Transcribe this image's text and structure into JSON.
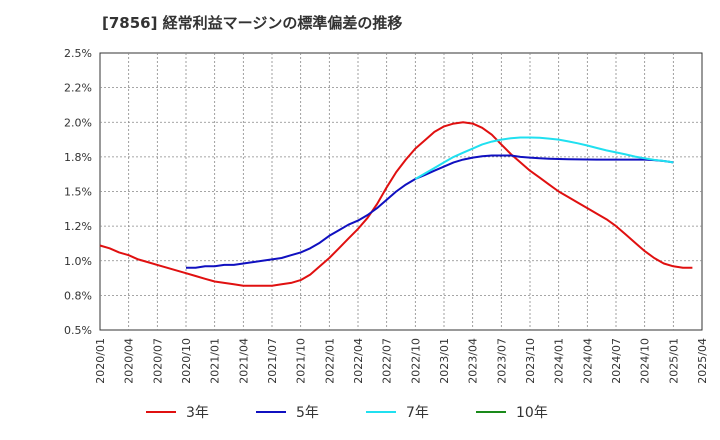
{
  "chart_data": {
    "type": "line",
    "title": "[7856]  経常利益マージンの標準偏差の推移",
    "x": [
      "2020/01",
      "2020/04",
      "2020/07",
      "2020/10",
      "2021/01",
      "2021/04",
      "2021/07",
      "2021/10",
      "2022/01",
      "2022/04",
      "2022/07",
      "2022/10",
      "2023/01",
      "2023/04",
      "2023/07",
      "2023/10",
      "2024/01",
      "2024/04",
      "2024/07",
      "2024/10",
      "2025/01",
      "2025/04"
    ],
    "y_ticks": [
      "0.5%",
      "0.8%",
      "1.0%",
      "1.2%",
      "1.5%",
      "1.8%",
      "2.0%",
      "2.2%",
      "2.5%"
    ],
    "ylim": [
      0.5,
      2.5
    ],
    "grid": true,
    "legend_position": "bottom",
    "series": [
      {
        "name": "3年",
        "color": "#e01010",
        "points": [
          [
            "2020/01",
            1.11
          ],
          [
            "2020/02",
            1.09
          ],
          [
            "2020/03",
            1.06
          ],
          [
            "2020/04",
            1.04
          ],
          [
            "2020/05",
            1.01
          ],
          [
            "2020/06",
            0.99
          ],
          [
            "2020/07",
            0.97
          ],
          [
            "2020/08",
            0.95
          ],
          [
            "2020/09",
            0.93
          ],
          [
            "2020/10",
            0.91
          ],
          [
            "2020/11",
            0.89
          ],
          [
            "2020/12",
            0.87
          ],
          [
            "2021/01",
            0.85
          ],
          [
            "2021/02",
            0.84
          ],
          [
            "2021/03",
            0.83
          ],
          [
            "2021/04",
            0.82
          ],
          [
            "2021/05",
            0.82
          ],
          [
            "2021/06",
            0.82
          ],
          [
            "2021/07",
            0.82
          ],
          [
            "2021/08",
            0.83
          ],
          [
            "2021/09",
            0.84
          ],
          [
            "2021/10",
            0.86
          ],
          [
            "2021/11",
            0.9
          ],
          [
            "2021/12",
            0.96
          ],
          [
            "2022/01",
            1.02
          ],
          [
            "2022/02",
            1.09
          ],
          [
            "2022/03",
            1.16
          ],
          [
            "2022/04",
            1.23
          ],
          [
            "2022/05",
            1.31
          ],
          [
            "2022/06",
            1.41
          ],
          [
            "2022/07",
            1.53
          ],
          [
            "2022/08",
            1.64
          ],
          [
            "2022/09",
            1.73
          ],
          [
            "2022/10",
            1.81
          ],
          [
            "2022/11",
            1.87
          ],
          [
            "2022/12",
            1.93
          ],
          [
            "2023/01",
            1.97
          ],
          [
            "2023/02",
            1.99
          ],
          [
            "2023/03",
            2.0
          ],
          [
            "2023/04",
            1.99
          ],
          [
            "2023/05",
            1.96
          ],
          [
            "2023/06",
            1.91
          ],
          [
            "2023/07",
            1.84
          ],
          [
            "2023/08",
            1.77
          ],
          [
            "2023/09",
            1.71
          ],
          [
            "2023/10",
            1.65
          ],
          [
            "2023/11",
            1.6
          ],
          [
            "2023/12",
            1.55
          ],
          [
            "2024/01",
            1.5
          ],
          [
            "2024/02",
            1.46
          ],
          [
            "2024/03",
            1.42
          ],
          [
            "2024/04",
            1.38
          ],
          [
            "2024/05",
            1.34
          ],
          [
            "2024/06",
            1.3
          ],
          [
            "2024/07",
            1.25
          ],
          [
            "2024/08",
            1.19
          ],
          [
            "2024/09",
            1.13
          ],
          [
            "2024/10",
            1.07
          ],
          [
            "2024/11",
            1.02
          ],
          [
            "2024/12",
            0.98
          ],
          [
            "2025/01",
            0.96
          ],
          [
            "2025/02",
            0.95
          ],
          [
            "2025/03",
            0.95
          ]
        ]
      },
      {
        "name": "5年",
        "color": "#1010c0",
        "points": [
          [
            "2020/10",
            0.95
          ],
          [
            "2020/11",
            0.95
          ],
          [
            "2020/12",
            0.96
          ],
          [
            "2021/01",
            0.96
          ],
          [
            "2021/02",
            0.97
          ],
          [
            "2021/03",
            0.97
          ],
          [
            "2021/04",
            0.98
          ],
          [
            "2021/05",
            0.99
          ],
          [
            "2021/06",
            1.0
          ],
          [
            "2021/07",
            1.01
          ],
          [
            "2021/08",
            1.02
          ],
          [
            "2021/09",
            1.04
          ],
          [
            "2021/10",
            1.06
          ],
          [
            "2021/11",
            1.09
          ],
          [
            "2021/12",
            1.13
          ],
          [
            "2022/01",
            1.18
          ],
          [
            "2022/02",
            1.22
          ],
          [
            "2022/03",
            1.26
          ],
          [
            "2022/04",
            1.29
          ],
          [
            "2022/05",
            1.33
          ],
          [
            "2022/06",
            1.38
          ],
          [
            "2022/07",
            1.44
          ],
          [
            "2022/08",
            1.5
          ],
          [
            "2022/09",
            1.55
          ],
          [
            "2022/10",
            1.59
          ],
          [
            "2022/11",
            1.62
          ],
          [
            "2022/12",
            1.65
          ],
          [
            "2023/01",
            1.68
          ],
          [
            "2023/02",
            1.71
          ],
          [
            "2023/03",
            1.73
          ],
          [
            "2023/04",
            1.745
          ],
          [
            "2023/05",
            1.755
          ],
          [
            "2023/06",
            1.76
          ],
          [
            "2023/07",
            1.76
          ],
          [
            "2023/08",
            1.76
          ],
          [
            "2023/09",
            1.75
          ],
          [
            "2023/10",
            1.745
          ],
          [
            "2023/11",
            1.74
          ],
          [
            "2023/12",
            1.737
          ],
          [
            "2024/01",
            1.735
          ],
          [
            "2024/02",
            1.733
          ],
          [
            "2024/03",
            1.732
          ],
          [
            "2024/04",
            1.731
          ],
          [
            "2024/05",
            1.73
          ],
          [
            "2024/06",
            1.73
          ],
          [
            "2024/07",
            1.73
          ],
          [
            "2024/08",
            1.73
          ],
          [
            "2024/09",
            1.73
          ],
          [
            "2024/10",
            1.73
          ],
          [
            "2024/11",
            1.727
          ],
          [
            "2024/12",
            1.72
          ],
          [
            "2025/01",
            1.71
          ]
        ]
      },
      {
        "name": "7年",
        "color": "#20e0f0",
        "points": [
          [
            "2022/10",
            1.59
          ],
          [
            "2022/11",
            1.63
          ],
          [
            "2022/12",
            1.67
          ],
          [
            "2023/01",
            1.71
          ],
          [
            "2023/02",
            1.75
          ],
          [
            "2023/03",
            1.78
          ],
          [
            "2023/04",
            1.81
          ],
          [
            "2023/05",
            1.84
          ],
          [
            "2023/06",
            1.86
          ],
          [
            "2023/07",
            1.875
          ],
          [
            "2023/08",
            1.885
          ],
          [
            "2023/09",
            1.89
          ],
          [
            "2023/10",
            1.89
          ],
          [
            "2023/11",
            1.888
          ],
          [
            "2023/12",
            1.882
          ],
          [
            "2024/01",
            1.875
          ],
          [
            "2024/02",
            1.862
          ],
          [
            "2024/03",
            1.848
          ],
          [
            "2024/04",
            1.832
          ],
          [
            "2024/05",
            1.814
          ],
          [
            "2024/06",
            1.797
          ],
          [
            "2024/07",
            1.782
          ],
          [
            "2024/08",
            1.768
          ],
          [
            "2024/09",
            1.752
          ],
          [
            "2024/10",
            1.74
          ],
          [
            "2024/11",
            1.728
          ],
          [
            "2024/12",
            1.72
          ],
          [
            "2025/01",
            1.71
          ]
        ]
      },
      {
        "name": "10年",
        "color": "#1a8a1a",
        "points": []
      }
    ]
  }
}
